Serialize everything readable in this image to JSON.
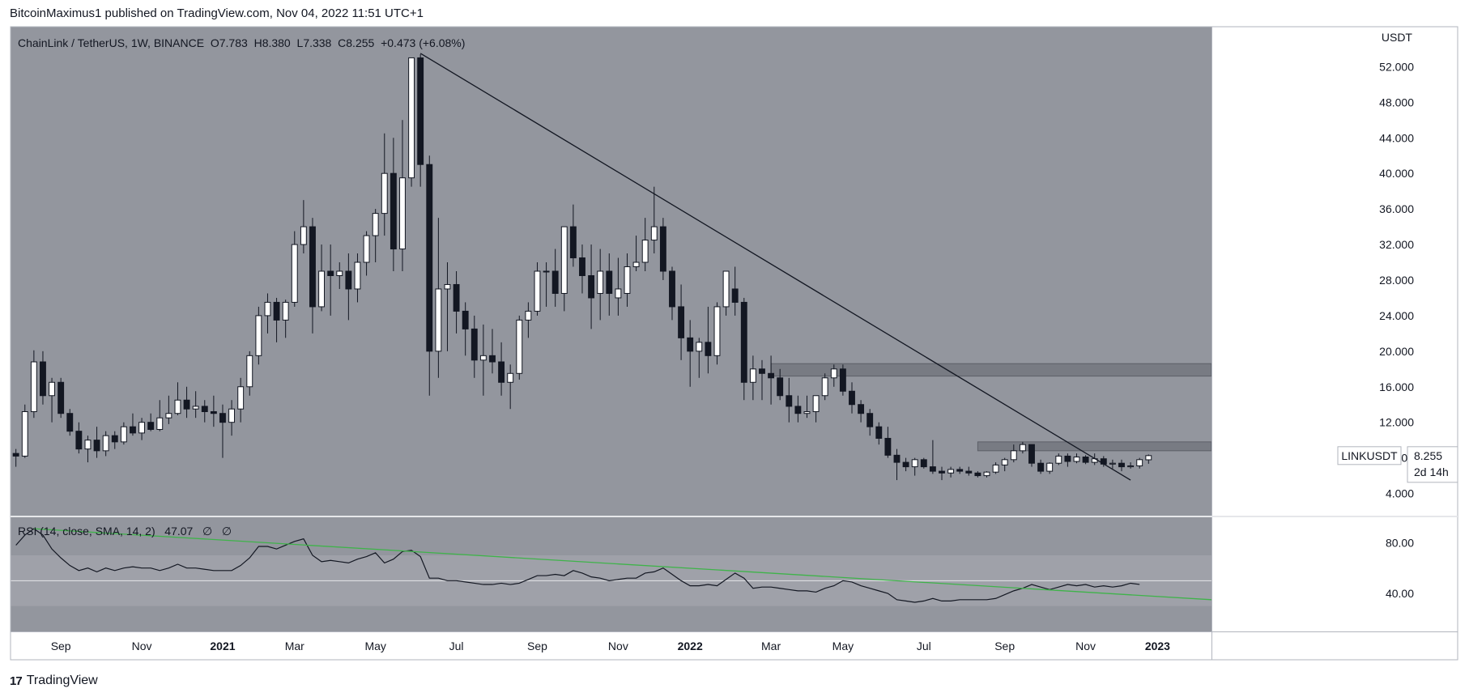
{
  "header": {
    "text": "BitcoinMaximus1 published on TradingView.com, Nov 04, 2022 11:51 UTC+1"
  },
  "footer": {
    "brand": "TradingView",
    "logo": "17"
  },
  "colors": {
    "background": "#ffffff",
    "plot_bg": "#93969e",
    "candle_up": "#ffffff",
    "candle_down": "#131722",
    "trendline": "#131722",
    "zone": "#6f727a",
    "rsi_line": "#131722",
    "rsi_trend": "#3fb34a",
    "rsi_band": "#a9acb3"
  },
  "legend": {
    "symbol": "ChainLink / TetherUS, 1W, BINANCE",
    "o_label": "O",
    "o_value": "7.783",
    "h_label": "H",
    "h_value": "8.380",
    "l_label": "L",
    "l_value": "7.338",
    "c_label": "C",
    "c_value": "8.255",
    "change": "+0.473 (+6.08%)"
  },
  "rsi_legend": {
    "text": "RSI (14, close, SMA, 14, 2)",
    "value": "47.07",
    "extra1": "∅",
    "extra2": "∅"
  },
  "price_tag": {
    "symbol": "LINKUSDT",
    "value": "8.255",
    "countdown": "2d 14h"
  },
  "chart_data": [
    {
      "type": "candlestick",
      "title": "ChainLink / TetherUS, 1W, BINANCE",
      "currency_label": "USDT",
      "ylim": [
        1.5,
        56.5
      ],
      "yticks": [
        4,
        8,
        12,
        16,
        20,
        24,
        28,
        32,
        36,
        40,
        44,
        48,
        52
      ],
      "ytick_labels": [
        "4.000",
        "8.000",
        "12.000",
        "16.000",
        "20.000",
        "24.000",
        "28.000",
        "32.000",
        "36.000",
        "40.000",
        "44.000",
        "48.000",
        "52.000"
      ],
      "x_index_range": [
        -0.6,
        133
      ],
      "xticks": [
        {
          "label": "Sep",
          "index": 5
        },
        {
          "label": "Nov",
          "index": 14
        },
        {
          "label": "2021",
          "index": 23,
          "bold": true
        },
        {
          "label": "Mar",
          "index": 31
        },
        {
          "label": "May",
          "index": 40
        },
        {
          "label": "Jul",
          "index": 49
        },
        {
          "label": "Sep",
          "index": 58
        },
        {
          "label": "Nov",
          "index": 67
        },
        {
          "label": "2022",
          "index": 75,
          "bold": true
        },
        {
          "label": "Mar",
          "index": 84
        },
        {
          "label": "May",
          "index": 92
        },
        {
          "label": "Jul",
          "index": 101
        },
        {
          "label": "Sep",
          "index": 110
        },
        {
          "label": "Nov",
          "index": 119
        },
        {
          "label": "2023",
          "index": 127,
          "bold": true
        }
      ],
      "ohlc": [
        [
          8.5,
          9.0,
          7.0,
          8.2
        ],
        [
          8.2,
          14.0,
          8.0,
          13.2
        ],
        [
          13.2,
          20.1,
          12.5,
          18.8
        ],
        [
          18.8,
          20.0,
          14.0,
          15.0
        ],
        [
          15.0,
          17.0,
          12.0,
          16.5
        ],
        [
          16.5,
          17.0,
          12.5,
          13.0
        ],
        [
          13.0,
          13.5,
          10.5,
          11.0
        ],
        [
          11.0,
          12.0,
          8.5,
          9.0
        ],
        [
          9.0,
          10.5,
          7.5,
          10.0
        ],
        [
          10.0,
          11.5,
          8.0,
          8.8
        ],
        [
          8.8,
          11.0,
          8.2,
          10.5
        ],
        [
          10.5,
          11.0,
          9.0,
          9.8
        ],
        [
          9.8,
          12.0,
          9.5,
          11.5
        ],
        [
          11.5,
          13.0,
          10.5,
          10.8
        ],
        [
          10.8,
          12.5,
          10.0,
          12.0
        ],
        [
          12.0,
          13.0,
          11.0,
          11.2
        ],
        [
          11.2,
          14.5,
          11.0,
          12.5
        ],
        [
          12.5,
          15.0,
          11.8,
          13.0
        ],
        [
          13.0,
          16.5,
          12.8,
          14.5
        ],
        [
          14.5,
          16.0,
          12.5,
          13.5
        ],
        [
          13.5,
          15.5,
          12.5,
          13.8
        ],
        [
          13.8,
          14.5,
          12.0,
          13.2
        ],
        [
          13.2,
          15.0,
          11.5,
          13.0
        ],
        [
          13.0,
          14.0,
          8.0,
          12.0
        ],
        [
          12.0,
          14.5,
          10.5,
          13.5
        ],
        [
          13.5,
          17.0,
          12.0,
          16.0
        ],
        [
          16.0,
          20.0,
          15.0,
          19.5
        ],
        [
          19.5,
          25.0,
          18.5,
          24.0
        ],
        [
          24.0,
          26.5,
          22.0,
          25.5
        ],
        [
          25.5,
          26.0,
          21.0,
          23.5
        ],
        [
          23.5,
          25.8,
          21.5,
          25.5
        ],
        [
          25.5,
          33.5,
          25.0,
          32.0
        ],
        [
          32.0,
          37.0,
          31.0,
          34.0
        ],
        [
          34.0,
          35.0,
          22.0,
          25.0
        ],
        [
          25.0,
          32.0,
          24.5,
          29.0
        ],
        [
          29.0,
          32.0,
          24.0,
          28.5
        ],
        [
          28.5,
          30.0,
          27.0,
          29.0
        ],
        [
          29.0,
          31.0,
          23.5,
          27.0
        ],
        [
          27.0,
          31.0,
          25.5,
          30.0
        ],
        [
          30.0,
          33.5,
          28.5,
          33.0
        ],
        [
          33.0,
          36.0,
          30.0,
          35.5
        ],
        [
          35.5,
          44.5,
          33.0,
          40.0
        ],
        [
          40.0,
          44.0,
          29.0,
          31.5
        ],
        [
          31.5,
          46.0,
          29.0,
          39.5
        ],
        [
          39.5,
          52.8,
          38.5,
          53.0
        ],
        [
          53.0,
          53.4,
          38.5,
          41.0
        ],
        [
          41.0,
          42.0,
          15.0,
          20.0
        ],
        [
          20.0,
          35.0,
          17.0,
          27.0
        ],
        [
          27.0,
          30.0,
          20.0,
          27.5
        ],
        [
          27.5,
          29.0,
          22.0,
          24.5
        ],
        [
          24.5,
          25.5,
          19.5,
          22.5
        ],
        [
          22.5,
          24.0,
          17.0,
          19.0
        ],
        [
          19.0,
          23.0,
          15.0,
          19.5
        ],
        [
          19.5,
          22.5,
          17.5,
          18.8
        ],
        [
          18.8,
          21.0,
          15.0,
          16.5
        ],
        [
          16.5,
          18.5,
          13.5,
          17.5
        ],
        [
          17.5,
          24.0,
          16.8,
          23.5
        ],
        [
          23.5,
          25.5,
          21.5,
          24.5
        ],
        [
          24.5,
          30.0,
          24.0,
          29.0
        ],
        [
          29.0,
          30.0,
          25.0,
          29.0
        ],
        [
          29.0,
          31.5,
          25.0,
          26.5
        ],
        [
          26.5,
          34.0,
          24.5,
          34.0
        ],
        [
          34.0,
          36.5,
          29.5,
          30.5
        ],
        [
          30.5,
          32.0,
          26.5,
          28.5
        ],
        [
          28.5,
          32.0,
          22.5,
          26.0
        ],
        [
          26.5,
          31.5,
          23.5,
          29.0
        ],
        [
          29.0,
          31.0,
          24.0,
          26.5
        ],
        [
          26.0,
          30.5,
          24.0,
          27.0
        ],
        [
          26.5,
          31.0,
          25.0,
          29.5
        ],
        [
          29.5,
          33.0,
          29.0,
          30.0
        ],
        [
          30.0,
          35.0,
          29.0,
          32.5
        ],
        [
          32.5,
          38.5,
          31.0,
          34.0
        ],
        [
          34.0,
          35.0,
          28.0,
          29.0
        ],
        [
          29.0,
          29.5,
          23.5,
          25.0
        ],
        [
          25.0,
          27.5,
          19.0,
          21.5
        ],
        [
          21.5,
          23.5,
          16.0,
          20.0
        ],
        [
          20.0,
          21.5,
          17.0,
          21.0
        ],
        [
          21.0,
          25.0,
          17.5,
          19.5
        ],
        [
          19.5,
          25.5,
          18.5,
          25.0
        ],
        [
          25.0,
          28.5,
          24.0,
          29.0
        ],
        [
          27.0,
          29.5,
          24.0,
          25.5
        ],
        [
          25.5,
          26.0,
          14.5,
          16.5
        ],
        [
          16.5,
          19.5,
          14.5,
          18.0
        ],
        [
          18.0,
          19.0,
          14.5,
          17.5
        ],
        [
          17.5,
          19.5,
          14.0,
          17.0
        ],
        [
          17.0,
          18.0,
          14.5,
          15.0
        ],
        [
          15.0,
          17.0,
          12.0,
          13.8
        ],
        [
          13.8,
          15.0,
          12.0,
          13.0
        ],
        [
          13.0,
          15.0,
          12.5,
          13.2
        ],
        [
          13.2,
          15.0,
          12.0,
          15.0
        ],
        [
          15.0,
          17.5,
          14.5,
          17.0
        ],
        [
          17.0,
          18.5,
          16.0,
          18.0
        ],
        [
          18.0,
          18.5,
          15.0,
          15.5
        ],
        [
          15.5,
          16.5,
          13.0,
          14.0
        ],
        [
          14.0,
          14.5,
          12.0,
          13.0
        ],
        [
          13.0,
          13.5,
          10.5,
          11.5
        ],
        [
          11.5,
          12.0,
          9.5,
          10.2
        ],
        [
          10.2,
          11.5,
          8.0,
          8.3
        ],
        [
          8.3,
          9.0,
          5.5,
          7.5
        ],
        [
          7.5,
          8.0,
          6.5,
          7.0
        ],
        [
          7.0,
          8.0,
          6.0,
          7.8
        ],
        [
          7.8,
          8.0,
          6.8,
          7.0
        ],
        [
          7.0,
          10.0,
          6.2,
          6.5
        ],
        [
          6.5,
          7.0,
          5.5,
          6.3
        ],
        [
          6.3,
          7.0,
          5.8,
          6.7
        ],
        [
          6.7,
          7.0,
          6.2,
          6.5
        ],
        [
          6.5,
          7.0,
          6.0,
          6.3
        ],
        [
          6.3,
          6.5,
          5.8,
          6.0
        ],
        [
          6.0,
          6.5,
          5.8,
          6.4
        ],
        [
          6.4,
          7.5,
          6.2,
          7.2
        ],
        [
          7.2,
          8.0,
          6.5,
          7.8
        ],
        [
          7.8,
          9.5,
          7.5,
          8.8
        ],
        [
          8.8,
          9.8,
          8.5,
          9.5
        ],
        [
          9.5,
          9.5,
          7.0,
          7.4
        ],
        [
          7.4,
          7.8,
          6.2,
          6.5
        ],
        [
          6.5,
          7.5,
          6.2,
          7.4
        ],
        [
          7.4,
          8.5,
          7.2,
          8.2
        ],
        [
          8.2,
          8.5,
          7.0,
          7.6
        ],
        [
          7.6,
          8.5,
          7.4,
          8.1
        ],
        [
          8.1,
          8.3,
          7.3,
          7.5
        ],
        [
          7.5,
          8.5,
          7.2,
          7.9
        ],
        [
          7.9,
          8.2,
          7.0,
          7.3
        ],
        [
          7.3,
          7.8,
          6.8,
          7.4
        ],
        [
          7.4,
          7.8,
          6.5,
          7.0
        ],
        [
          7.0,
          7.5,
          6.8,
          7.1
        ],
        [
          7.1,
          8.0,
          6.8,
          7.8
        ],
        [
          7.783,
          8.38,
          7.338,
          8.255
        ]
      ],
      "trendline": {
        "from": [
          45,
          53.5
        ],
        "to": [
          124,
          5.5
        ]
      },
      "zones": [
        {
          "x_from": 84,
          "x_to": 134.5,
          "y_from": 17.2,
          "y_to": 18.6
        },
        {
          "x_from": 107,
          "x_to": 134.5,
          "y_from": 8.8,
          "y_to": 9.8
        }
      ]
    },
    {
      "type": "line",
      "title": "RSI (14, close, SMA, 14, 2)",
      "last_value": 47.07,
      "ylim": [
        10,
        100
      ],
      "yticks": [
        40,
        80
      ],
      "ytick_labels": [
        "40.00",
        "80.00"
      ],
      "band": [
        30,
        70
      ],
      "midline": 50,
      "values": [
        78,
        86,
        91,
        86,
        75,
        68,
        62,
        58,
        60,
        57,
        60,
        58,
        60,
        61,
        60,
        60,
        58,
        60,
        63,
        60,
        60,
        59,
        58,
        58,
        58,
        62,
        68,
        77,
        77,
        75,
        78,
        81,
        83,
        70,
        65,
        66,
        65,
        64,
        67,
        69,
        72,
        64,
        67,
        73,
        74,
        69,
        52,
        52,
        50,
        50,
        49,
        48,
        47,
        47,
        48,
        47,
        48,
        51,
        54,
        54,
        55,
        54,
        58,
        56,
        53,
        52,
        50,
        51,
        52,
        52,
        56,
        57,
        60,
        55,
        50,
        46,
        46,
        47,
        46,
        51,
        56,
        52,
        44,
        45,
        45,
        44,
        43,
        42,
        42,
        41,
        44,
        46,
        50,
        49,
        46,
        44,
        42,
        40,
        35,
        34,
        33,
        34,
        36,
        34,
        34,
        35,
        35,
        35,
        35,
        36,
        39,
        42,
        44,
        47,
        45,
        43,
        45,
        47,
        46,
        47,
        45,
        46,
        45,
        46,
        48,
        47.07
      ],
      "trendline": {
        "from": [
          2,
          91
        ],
        "to": [
          133,
          35
        ]
      }
    }
  ]
}
